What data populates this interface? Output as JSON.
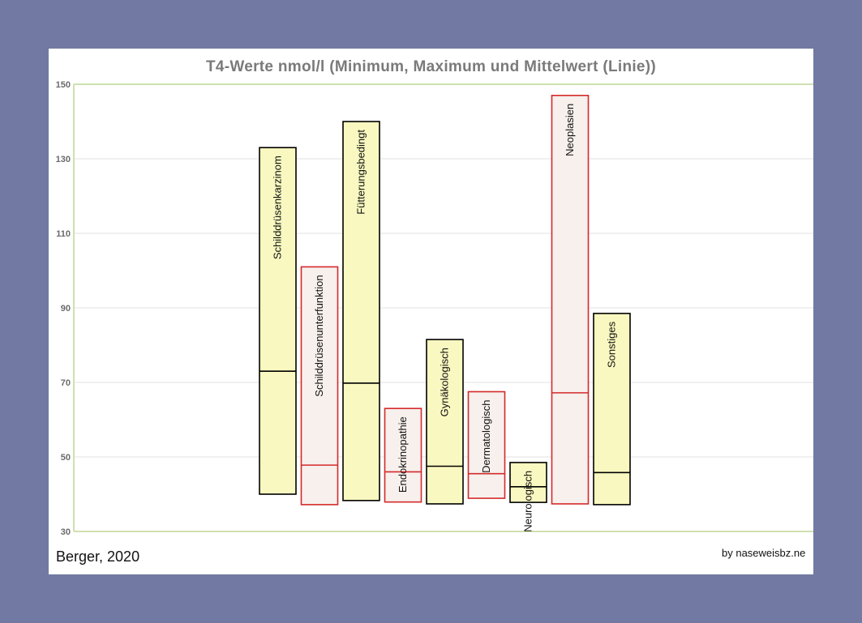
{
  "chart_data": {
    "type": "bar",
    "title": "T4-Werte nmol/l (Minimum, Maximum und Mittelwert (Linie))",
    "xlabel": "",
    "ylabel": "",
    "ylim": [
      30,
      150
    ],
    "yticks": [
      30,
      50,
      70,
      90,
      110,
      130,
      150
    ],
    "grid": true,
    "categories": [
      "Schilddrüsenkarzinom",
      "Schilddrüsenunterfunktion",
      "Fütterungsbedingt",
      "Endokrinopathie",
      "Gynäkologisch",
      "Dermatologisch",
      "Neurologisch",
      "Neoplasien",
      "Sonstiges"
    ],
    "series": [
      {
        "name": "",
        "key": "min",
        "values": [
          40,
          37.2,
          38.3,
          37.9,
          37.4,
          38.9,
          37.8,
          37.4,
          37.2
        ]
      },
      {
        "name": "",
        "key": "max",
        "values": [
          133,
          101,
          140,
          63,
          81.5,
          67.5,
          48.5,
          147,
          88.5
        ]
      },
      {
        "name": "",
        "key": "mean",
        "values": [
          73,
          47.8,
          69.8,
          46,
          47.5,
          45.5,
          42,
          67.2,
          45.8
        ]
      }
    ],
    "outline_colors": [
      "#000000",
      "#d42a2a",
      "#000000",
      "#d42a2a",
      "#000000",
      "#d42a2a",
      "#000000",
      "#d42a2a",
      "#000000"
    ],
    "fill_colors": [
      "#f8f8c0",
      "#f7f0ec",
      "#f8f8c0",
      "#f7f0ec",
      "#f8f8c0",
      "#f7f0ec",
      "#f8f8c0",
      "#f7f0ec",
      "#f8f8c0"
    ],
    "axis_color": "#cfe0b0",
    "tick_label_color": "#6a6a6a"
  },
  "credits": {
    "left": "Berger,  2020",
    "right": "by naseweisbz.ne"
  }
}
